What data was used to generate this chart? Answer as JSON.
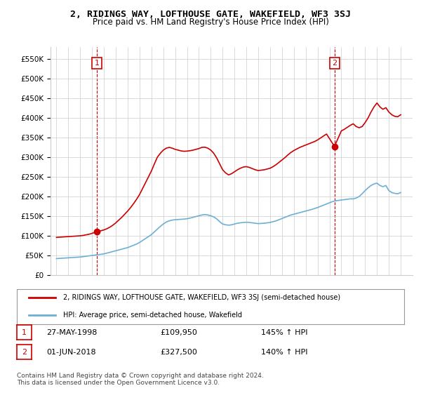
{
  "title": "2, RIDINGS WAY, LOFTHOUSE GATE, WAKEFIELD, WF3 3SJ",
  "subtitle": "Price paid vs. HM Land Registry's House Price Index (HPI)",
  "legend_line1": "2, RIDINGS WAY, LOFTHOUSE GATE, WAKEFIELD, WF3 3SJ (semi-detached house)",
  "legend_line2": "HPI: Average price, semi-detached house, Wakefield",
  "footer": "Contains HM Land Registry data © Crown copyright and database right 2024.\nThis data is licensed under the Open Government Licence v3.0.",
  "sale1_label": "1",
  "sale1_date": "27-MAY-1998",
  "sale1_price": "£109,950",
  "sale1_hpi": "145% ↑ HPI",
  "sale2_label": "2",
  "sale2_date": "01-JUN-2018",
  "sale2_price": "£327,500",
  "sale2_hpi": "140% ↑ HPI",
  "sale1_x": 1998.4,
  "sale1_y": 109950,
  "sale2_x": 2018.42,
  "sale2_y": 327500,
  "marker1_dashed_x": 1998.4,
  "marker2_dashed_x": 2018.42,
  "ylim_min": 0,
  "ylim_max": 580000,
  "xlim_min": 1994.5,
  "xlim_max": 2025.0,
  "hpi_color": "#6dafd6",
  "price_color": "#cc0000",
  "background_color": "#ffffff",
  "grid_color": "#cccccc",
  "hpi_data_x": [
    1995,
    1995.25,
    1995.5,
    1995.75,
    1996,
    1996.25,
    1996.5,
    1996.75,
    1997,
    1997.25,
    1997.5,
    1997.75,
    1998,
    1998.25,
    1998.5,
    1998.75,
    1999,
    1999.25,
    1999.5,
    1999.75,
    2000,
    2000.25,
    2000.5,
    2000.75,
    2001,
    2001.25,
    2001.5,
    2001.75,
    2002,
    2002.25,
    2002.5,
    2002.75,
    2003,
    2003.25,
    2003.5,
    2003.75,
    2004,
    2004.25,
    2004.5,
    2004.75,
    2005,
    2005.25,
    2005.5,
    2005.75,
    2006,
    2006.25,
    2006.5,
    2006.75,
    2007,
    2007.25,
    2007.5,
    2007.75,
    2008,
    2008.25,
    2008.5,
    2008.75,
    2009,
    2009.25,
    2009.5,
    2009.75,
    2010,
    2010.25,
    2010.5,
    2010.75,
    2011,
    2011.25,
    2011.5,
    2011.75,
    2012,
    2012.25,
    2012.5,
    2012.75,
    2013,
    2013.25,
    2013.5,
    2013.75,
    2014,
    2014.25,
    2014.5,
    2014.75,
    2015,
    2015.25,
    2015.5,
    2015.75,
    2016,
    2016.25,
    2016.5,
    2016.75,
    2017,
    2017.25,
    2017.5,
    2017.75,
    2018,
    2018.25,
    2018.5,
    2018.75,
    2019,
    2019.25,
    2019.5,
    2019.75,
    2020,
    2020.25,
    2020.5,
    2020.75,
    2021,
    2021.25,
    2021.5,
    2021.75,
    2022,
    2022.25,
    2022.5,
    2022.75,
    2023,
    2023.25,
    2023.5,
    2023.75,
    2024
  ],
  "hpi_data_y": [
    42000,
    42500,
    43000,
    43500,
    44000,
    44500,
    45000,
    45500,
    46000,
    47000,
    48000,
    49000,
    50000,
    51000,
    52000,
    53000,
    54000,
    56000,
    58000,
    60000,
    62000,
    64000,
    66000,
    68000,
    70000,
    73000,
    76000,
    79000,
    83000,
    88000,
    93000,
    98000,
    103000,
    110000,
    117000,
    124000,
    130000,
    135000,
    138000,
    140000,
    141000,
    141500,
    142000,
    142500,
    143500,
    145000,
    147000,
    149000,
    151000,
    153000,
    154000,
    153000,
    151000,
    148000,
    143000,
    136000,
    130000,
    128000,
    127000,
    128000,
    130000,
    132000,
    133000,
    134000,
    134500,
    134000,
    133000,
    132000,
    131000,
    131500,
    132000,
    133000,
    134000,
    136000,
    138000,
    141000,
    144000,
    147000,
    150000,
    153000,
    155000,
    157000,
    159000,
    161000,
    163000,
    165000,
    167000,
    169500,
    172000,
    175000,
    178000,
    181000,
    184000,
    187000,
    189000,
    190000,
    191000,
    192000,
    193000,
    194000,
    194000,
    196000,
    200000,
    207000,
    215000,
    222000,
    228000,
    232000,
    234000,
    228000,
    225000,
    228000,
    215000,
    210000,
    208000,
    207000,
    210000
  ],
  "price_data_x": [
    1995.0,
    1995.25,
    1995.5,
    1995.75,
    1996,
    1996.25,
    1996.5,
    1996.75,
    1997,
    1997.25,
    1997.5,
    1997.75,
    1998.4,
    1999,
    1999.25,
    1999.5,
    1999.75,
    2000,
    2000.25,
    2000.5,
    2000.75,
    2001,
    2001.25,
    2001.5,
    2001.75,
    2002,
    2002.25,
    2002.5,
    2002.75,
    2003,
    2003.25,
    2003.5,
    2003.75,
    2004,
    2004.25,
    2004.5,
    2004.75,
    2005,
    2005.25,
    2005.5,
    2005.75,
    2006,
    2006.25,
    2006.5,
    2006.75,
    2007,
    2007.25,
    2007.5,
    2007.75,
    2008,
    2008.25,
    2008.5,
    2008.75,
    2009,
    2009.25,
    2009.5,
    2009.75,
    2010,
    2010.25,
    2010.5,
    2010.75,
    2011,
    2011.25,
    2011.5,
    2011.75,
    2012,
    2012.25,
    2012.5,
    2012.75,
    2013,
    2013.25,
    2013.5,
    2013.75,
    2014,
    2014.25,
    2014.5,
    2014.75,
    2015,
    2015.25,
    2015.5,
    2015.75,
    2016,
    2016.25,
    2016.5,
    2016.75,
    2017,
    2017.25,
    2017.5,
    2017.75,
    2018.42,
    2019,
    2019.25,
    2019.5,
    2019.75,
    2020,
    2020.25,
    2020.5,
    2020.75,
    2021,
    2021.25,
    2021.5,
    2021.75,
    2022,
    2022.25,
    2022.5,
    2022.75,
    2023,
    2023.25,
    2023.5,
    2023.75,
    2024
  ],
  "price_data_y": [
    96000,
    96500,
    97000,
    97500,
    98000,
    98500,
    99000,
    99500,
    100000,
    101000,
    102500,
    104000,
    109950,
    115000,
    118000,
    122000,
    127000,
    133000,
    140000,
    147000,
    155000,
    163000,
    172000,
    182000,
    193000,
    205000,
    220000,
    235000,
    250000,
    265000,
    283000,
    300000,
    310000,
    318000,
    323000,
    325000,
    323000,
    320000,
    318000,
    316000,
    315000,
    315500,
    316500,
    318000,
    320000,
    322000,
    325000,
    325500,
    323000,
    318000,
    310000,
    298000,
    283000,
    268000,
    260000,
    255000,
    258000,
    263000,
    268000,
    272000,
    275000,
    276000,
    274000,
    271000,
    268000,
    266000,
    267000,
    268000,
    270000,
    272000,
    276000,
    281000,
    287000,
    293000,
    299000,
    306000,
    312000,
    317000,
    321000,
    325000,
    328000,
    331000,
    334000,
    337000,
    340000,
    344000,
    349000,
    354000,
    359000,
    327500,
    367000,
    371000,
    376000,
    381000,
    385000,
    378000,
    375000,
    378000,
    388000,
    400000,
    415000,
    428000,
    438000,
    428000,
    422000,
    426000,
    415000,
    408000,
    404000,
    403000,
    408000
  ],
  "yticks": [
    0,
    50000,
    100000,
    150000,
    200000,
    250000,
    300000,
    350000,
    400000,
    450000,
    500000,
    550000
  ],
  "ytick_labels": [
    "£0",
    "£50K",
    "£100K",
    "£150K",
    "£200K",
    "£250K",
    "£300K",
    "£350K",
    "£400K",
    "£450K",
    "£500K",
    "£550K"
  ],
  "xticks": [
    1995,
    1996,
    1997,
    1998,
    1999,
    2000,
    2001,
    2002,
    2003,
    2004,
    2005,
    2006,
    2007,
    2008,
    2009,
    2010,
    2011,
    2012,
    2013,
    2014,
    2015,
    2016,
    2017,
    2018,
    2019,
    2020,
    2021,
    2022,
    2023,
    2024
  ]
}
